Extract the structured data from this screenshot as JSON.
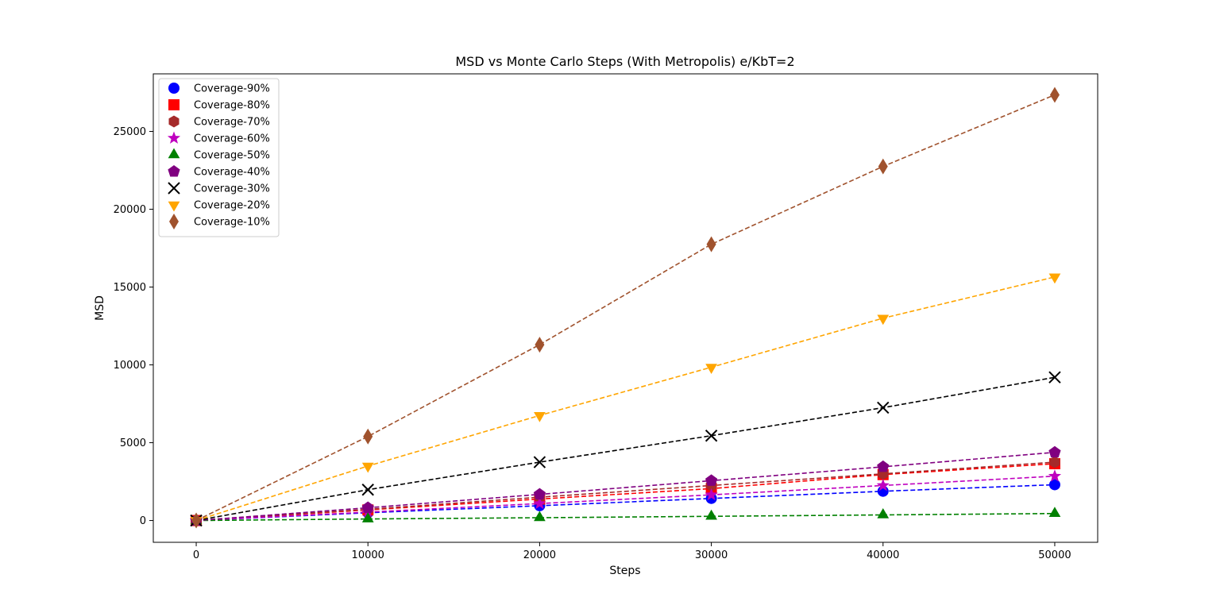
{
  "chart_data": {
    "type": "line",
    "title": "MSD vs Monte Carlo Steps (With Metropolis) e/KbT=2",
    "xlabel": "Steps",
    "ylabel": "MSD",
    "x": [
      0,
      10000,
      20000,
      30000,
      40000,
      50000
    ],
    "xlim": [
      -2500,
      52500
    ],
    "ylim": [
      -1400,
      28700
    ],
    "xticks": [
      0,
      10000,
      20000,
      30000,
      40000,
      50000
    ],
    "yticks": [
      0,
      5000,
      10000,
      15000,
      20000,
      25000
    ],
    "grid": false,
    "legend_position": "upper left",
    "line_style": "dashed",
    "series": [
      {
        "name": "Coverage-90%",
        "color": "#0000ff",
        "marker": "circle",
        "values": [
          0,
          500,
          950,
          1420,
          1880,
          2300
        ]
      },
      {
        "name": "Coverage-80%",
        "color": "#ff0000",
        "marker": "square",
        "values": [
          0,
          680,
          1380,
          2050,
          2950,
          3650
        ]
      },
      {
        "name": "Coverage-70%",
        "color": "#a52a2a",
        "marker": "hexagon",
        "values": [
          0,
          720,
          1500,
          2250,
          3000,
          3750
        ]
      },
      {
        "name": "Coverage-60%",
        "color": "#bf00bf",
        "marker": "star",
        "values": [
          0,
          540,
          1090,
          1650,
          2250,
          2850
        ]
      },
      {
        "name": "Coverage-50%",
        "color": "#008000",
        "marker": "triangle-up",
        "values": [
          0,
          100,
          180,
          270,
          360,
          450
        ]
      },
      {
        "name": "Coverage-40%",
        "color": "#800080",
        "marker": "pentagon",
        "values": [
          0,
          820,
          1680,
          2560,
          3450,
          4380
        ]
      },
      {
        "name": "Coverage-30%",
        "color": "#000000",
        "marker": "x",
        "values": [
          0,
          1980,
          3750,
          5450,
          7250,
          9200
        ]
      },
      {
        "name": "Coverage-20%",
        "color": "#ffa500",
        "marker": "triangle-down",
        "values": [
          0,
          3500,
          6750,
          9850,
          13000,
          15650
        ]
      },
      {
        "name": "Coverage-10%",
        "color": "#a0522d",
        "marker": "thin-diamond",
        "values": [
          0,
          5400,
          11300,
          17750,
          22750,
          27350
        ]
      }
    ]
  }
}
